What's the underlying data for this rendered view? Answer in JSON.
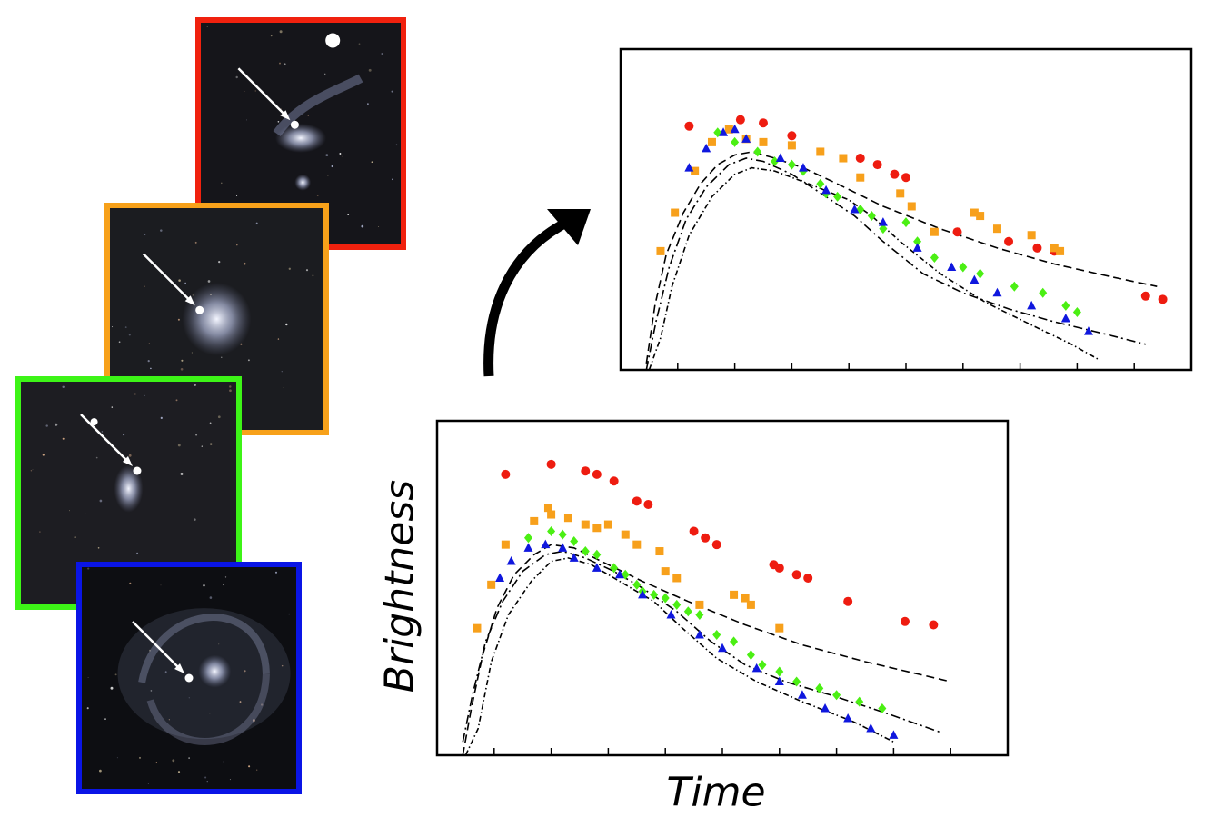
{
  "galaxy_images": [
    {
      "name": "red-host-galaxy",
      "border_color": "#f0210e",
      "background": "#15151a",
      "galaxy": "interacting"
    },
    {
      "name": "orange-host-galaxy",
      "border_color": "#f7a11a",
      "background": "#1b1c20",
      "galaxy": "spiral-compact"
    },
    {
      "name": "green-host-galaxy",
      "border_color": "#3df417",
      "background": "#1d1d22",
      "galaxy": "irregular"
    },
    {
      "name": "blue-host-galaxy",
      "border_color": "#0a15e6",
      "background": "#0d0e12",
      "galaxy": "spiral-large"
    }
  ],
  "arrow_icon": "curved-arrow-icon",
  "colors": {
    "red": "#ee1c10",
    "orange": "#f7a01b",
    "green": "#4bef13",
    "blue": "#0f17de"
  },
  "chart_data": [
    {
      "type": "scatter",
      "name": "normalized-light-curves",
      "xlim": [
        0,
        10
      ],
      "ylim": [
        0,
        10
      ],
      "xticks": [
        1,
        2,
        3,
        4,
        5,
        6,
        7,
        8,
        9
      ],
      "title": "",
      "xlabel": "",
      "ylabel": "",
      "series": [
        {
          "color": "red",
          "marker": "circle",
          "points": [
            [
              1.2,
              7.6
            ],
            [
              2.1,
              7.8
            ],
            [
              2.5,
              7.7
            ],
            [
              3.0,
              7.3
            ],
            [
              4.2,
              6.6
            ],
            [
              4.5,
              6.4
            ],
            [
              4.8,
              6.1
            ],
            [
              5.0,
              6.0
            ],
            [
              5.9,
              4.3
            ],
            [
              6.8,
              4.0
            ],
            [
              7.3,
              3.8
            ],
            [
              7.6,
              3.7
            ],
            [
              9.2,
              2.3
            ],
            [
              9.5,
              2.2
            ]
          ]
        },
        {
          "color": "orange",
          "marker": "square",
          "points": [
            [
              0.7,
              3.7
            ],
            [
              0.95,
              4.9
            ],
            [
              1.3,
              6.2
            ],
            [
              1.6,
              7.1
            ],
            [
              1.9,
              7.5
            ],
            [
              2.2,
              7.2
            ],
            [
              2.5,
              7.1
            ],
            [
              3.0,
              7.0
            ],
            [
              3.5,
              6.8
            ],
            [
              3.9,
              6.6
            ],
            [
              4.2,
              6.0
            ],
            [
              4.9,
              5.5
            ],
            [
              5.1,
              5.1
            ],
            [
              5.5,
              4.3
            ],
            [
              6.2,
              4.9
            ],
            [
              6.3,
              4.8
            ],
            [
              6.6,
              4.4
            ],
            [
              7.2,
              4.2
            ],
            [
              7.6,
              3.8
            ],
            [
              7.7,
              3.7
            ]
          ]
        },
        {
          "color": "green",
          "marker": "diamond",
          "points": [
            [
              1.7,
              7.4
            ],
            [
              2.0,
              7.1
            ],
            [
              2.4,
              6.8
            ],
            [
              2.7,
              6.5
            ],
            [
              3.0,
              6.4
            ],
            [
              3.2,
              6.2
            ],
            [
              3.5,
              5.8
            ],
            [
              3.6,
              5.5
            ],
            [
              3.8,
              5.4
            ],
            [
              4.2,
              5.0
            ],
            [
              4.4,
              4.8
            ],
            [
              4.6,
              4.4
            ],
            [
              5.0,
              4.6
            ],
            [
              5.2,
              4.0
            ],
            [
              5.5,
              3.5
            ],
            [
              6.0,
              3.2
            ],
            [
              6.3,
              3.0
            ],
            [
              6.9,
              2.6
            ],
            [
              7.4,
              2.4
            ],
            [
              7.8,
              2.0
            ],
            [
              8.0,
              1.8
            ]
          ]
        },
        {
          "color": "blue",
          "marker": "triangle",
          "points": [
            [
              1.2,
              6.3
            ],
            [
              1.5,
              6.9
            ],
            [
              1.8,
              7.4
            ],
            [
              2.0,
              7.5
            ],
            [
              2.2,
              7.2
            ],
            [
              2.8,
              6.6
            ],
            [
              3.2,
              6.3
            ],
            [
              3.6,
              5.6
            ],
            [
              4.1,
              5.0
            ],
            [
              4.6,
              4.6
            ],
            [
              5.2,
              3.8
            ],
            [
              5.8,
              3.2
            ],
            [
              6.2,
              2.8
            ],
            [
              6.6,
              2.4
            ],
            [
              7.2,
              2.0
            ],
            [
              7.8,
              1.6
            ],
            [
              8.2,
              1.2
            ]
          ]
        }
      ],
      "models": [
        {
          "style": "dashed",
          "points": [
            [
              0.45,
              0.2
            ],
            [
              0.6,
              2.0
            ],
            [
              0.8,
              3.6
            ],
            [
              1.1,
              4.9
            ],
            [
              1.4,
              5.8
            ],
            [
              1.7,
              6.4
            ],
            [
              2.0,
              6.7
            ],
            [
              2.3,
              6.8
            ],
            [
              2.7,
              6.6
            ],
            [
              3.2,
              6.3
            ],
            [
              3.8,
              5.8
            ],
            [
              4.6,
              5.1
            ],
            [
              5.6,
              4.4
            ],
            [
              6.6,
              3.8
            ],
            [
              7.6,
              3.3
            ],
            [
              8.6,
              2.9
            ],
            [
              9.4,
              2.6
            ]
          ]
        },
        {
          "style": "dashdot",
          "points": [
            [
              0.45,
              0.0
            ],
            [
              0.62,
              1.5
            ],
            [
              0.85,
              3.2
            ],
            [
              1.15,
              4.7
            ],
            [
              1.5,
              5.7
            ],
            [
              1.9,
              6.4
            ],
            [
              2.2,
              6.6
            ],
            [
              2.5,
              6.5
            ],
            [
              3.0,
              6.1
            ],
            [
              3.6,
              5.4
            ],
            [
              4.1,
              4.8
            ],
            [
              4.6,
              4.0
            ],
            [
              5.3,
              3.0
            ],
            [
              6.0,
              2.4
            ],
            [
              6.8,
              1.9
            ],
            [
              7.6,
              1.5
            ],
            [
              8.3,
              1.2
            ],
            [
              9.2,
              0.8
            ]
          ]
        },
        {
          "style": "dashdot2",
          "points": [
            [
              0.5,
              0.0
            ],
            [
              0.7,
              1.0
            ],
            [
              0.9,
              2.6
            ],
            [
              1.2,
              4.2
            ],
            [
              1.6,
              5.4
            ],
            [
              2.0,
              6.1
            ],
            [
              2.3,
              6.3
            ],
            [
              2.7,
              6.2
            ],
            [
              3.3,
              5.8
            ],
            [
              4.0,
              5.3
            ],
            [
              4.4,
              4.8
            ],
            [
              4.9,
              4.0
            ],
            [
              5.6,
              3.0
            ],
            [
              6.4,
              2.1
            ],
            [
              7.2,
              1.4
            ],
            [
              7.9,
              0.8
            ],
            [
              8.4,
              0.3
            ]
          ]
        }
      ]
    },
    {
      "type": "scatter",
      "name": "observed-light-curves",
      "xlim": [
        0,
        10
      ],
      "ylim": [
        0,
        10
      ],
      "xticks": [
        1,
        2,
        3,
        4,
        5,
        6,
        7,
        8,
        9
      ],
      "title": "",
      "xlabel": "Time",
      "ylabel": "Brightness",
      "series": [
        {
          "color": "red",
          "marker": "circle",
          "points": [
            [
              1.2,
              8.4
            ],
            [
              2.0,
              8.7
            ],
            [
              2.6,
              8.5
            ],
            [
              2.8,
              8.4
            ],
            [
              3.1,
              8.2
            ],
            [
              3.5,
              7.6
            ],
            [
              3.7,
              7.5
            ],
            [
              4.5,
              6.7
            ],
            [
              4.7,
              6.5
            ],
            [
              4.9,
              6.3
            ],
            [
              5.9,
              5.7
            ],
            [
              6.0,
              5.6
            ],
            [
              6.3,
              5.4
            ],
            [
              6.5,
              5.3
            ],
            [
              7.2,
              4.6
            ],
            [
              8.2,
              4.0
            ],
            [
              8.7,
              3.9
            ]
          ]
        },
        {
          "color": "orange",
          "marker": "square",
          "points": [
            [
              0.7,
              3.8
            ],
            [
              0.95,
              5.1
            ],
            [
              1.2,
              6.3
            ],
            [
              1.7,
              7.0
            ],
            [
              1.95,
              7.4
            ],
            [
              2.0,
              7.2
            ],
            [
              2.3,
              7.1
            ],
            [
              2.6,
              6.9
            ],
            [
              2.8,
              6.8
            ],
            [
              3.0,
              6.9
            ],
            [
              3.3,
              6.6
            ],
            [
              3.5,
              6.3
            ],
            [
              3.9,
              6.1
            ],
            [
              4.0,
              5.5
            ],
            [
              4.2,
              5.3
            ],
            [
              4.6,
              4.5
            ],
            [
              5.2,
              4.8
            ],
            [
              5.4,
              4.7
            ],
            [
              5.5,
              4.5
            ],
            [
              6.0,
              3.8
            ]
          ]
        },
        {
          "color": "green",
          "marker": "diamond",
          "points": [
            [
              1.6,
              6.5
            ],
            [
              2.0,
              6.7
            ],
            [
              2.2,
              6.6
            ],
            [
              2.4,
              6.4
            ],
            [
              2.6,
              6.1
            ],
            [
              2.8,
              6.0
            ],
            [
              3.1,
              5.6
            ],
            [
              3.3,
              5.4
            ],
            [
              3.5,
              5.1
            ],
            [
              3.6,
              4.9
            ],
            [
              3.8,
              4.8
            ],
            [
              4.0,
              4.7
            ],
            [
              4.2,
              4.5
            ],
            [
              4.4,
              4.3
            ],
            [
              4.6,
              4.2
            ],
            [
              4.9,
              3.6
            ],
            [
              5.2,
              3.4
            ],
            [
              5.5,
              3.0
            ],
            [
              5.7,
              2.7
            ],
            [
              6.0,
              2.5
            ],
            [
              6.3,
              2.2
            ],
            [
              6.7,
              2.0
            ],
            [
              7.0,
              1.8
            ],
            [
              7.4,
              1.6
            ],
            [
              7.8,
              1.4
            ]
          ]
        },
        {
          "color": "blue",
          "marker": "triangle",
          "points": [
            [
              1.1,
              5.3
            ],
            [
              1.3,
              5.8
            ],
            [
              1.6,
              6.2
            ],
            [
              1.9,
              6.3
            ],
            [
              2.2,
              6.2
            ],
            [
              2.4,
              5.9
            ],
            [
              2.8,
              5.6
            ],
            [
              3.2,
              5.4
            ],
            [
              3.6,
              4.8
            ],
            [
              4.1,
              4.2
            ],
            [
              4.6,
              3.6
            ],
            [
              5.0,
              3.2
            ],
            [
              5.6,
              2.6
            ],
            [
              6.0,
              2.2
            ],
            [
              6.4,
              1.8
            ],
            [
              6.8,
              1.4
            ],
            [
              7.2,
              1.1
            ],
            [
              7.6,
              0.8
            ],
            [
              8.0,
              0.6
            ]
          ]
        }
      ],
      "models": [
        {
          "style": "dashed",
          "points": [
            [
              0.45,
              0.0
            ],
            [
              0.6,
              1.4
            ],
            [
              0.8,
              3.0
            ],
            [
              1.05,
              4.4
            ],
            [
              1.35,
              5.4
            ],
            [
              1.7,
              6.0
            ],
            [
              2.0,
              6.3
            ],
            [
              2.4,
              6.2
            ],
            [
              3.0,
              5.7
            ],
            [
              3.6,
              5.2
            ],
            [
              4.4,
              4.6
            ],
            [
              5.4,
              3.9
            ],
            [
              6.4,
              3.3
            ],
            [
              7.5,
              2.8
            ],
            [
              8.5,
              2.4
            ],
            [
              9.0,
              2.2
            ]
          ]
        },
        {
          "style": "dashdot",
          "points": [
            [
              0.45,
              0.4
            ],
            [
              0.62,
              1.8
            ],
            [
              0.85,
              3.4
            ],
            [
              1.15,
              4.6
            ],
            [
              1.5,
              5.5
            ],
            [
              1.9,
              6.0
            ],
            [
              2.2,
              6.1
            ],
            [
              2.6,
              5.9
            ],
            [
              3.1,
              5.5
            ],
            [
              3.6,
              5.0
            ],
            [
              4.2,
              4.3
            ],
            [
              4.8,
              3.4
            ],
            [
              5.4,
              2.7
            ],
            [
              6.1,
              2.2
            ],
            [
              6.9,
              1.8
            ],
            [
              7.8,
              1.3
            ],
            [
              8.8,
              0.7
            ]
          ]
        },
        {
          "style": "dashdot2",
          "points": [
            [
              0.5,
              0.0
            ],
            [
              0.72,
              0.8
            ],
            [
              0.95,
              2.8
            ],
            [
              1.25,
              4.2
            ],
            [
              1.65,
              5.2
            ],
            [
              2.0,
              5.8
            ],
            [
              2.3,
              5.9
            ],
            [
              2.7,
              5.7
            ],
            [
              3.2,
              5.2
            ],
            [
              3.8,
              4.6
            ],
            [
              4.3,
              3.8
            ],
            [
              4.9,
              2.9
            ],
            [
              5.6,
              2.2
            ],
            [
              6.4,
              1.6
            ],
            [
              7.3,
              1.0
            ],
            [
              8.0,
              0.4
            ]
          ]
        }
      ]
    }
  ]
}
